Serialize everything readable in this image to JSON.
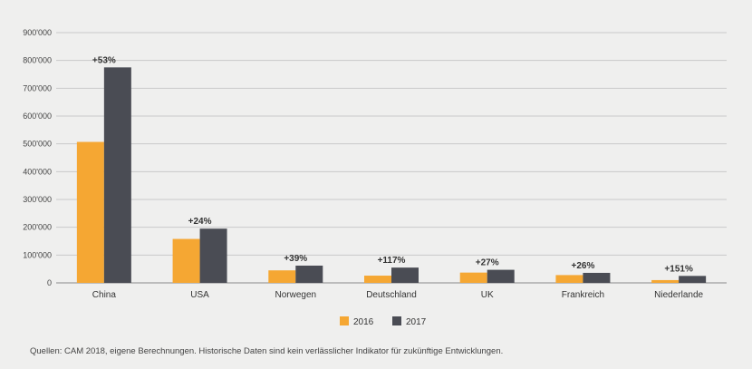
{
  "chart_data": {
    "type": "bar",
    "categories": [
      "China",
      "USA",
      "Norwegen",
      "Deutschland",
      "UK",
      "Frankreich",
      "Niederlande"
    ],
    "series": [
      {
        "name": "2016",
        "values": [
          507000,
          158000,
          45000,
          26000,
          37000,
          28000,
          10000
        ],
        "color": "#f5a733"
      },
      {
        "name": "2017",
        "values": [
          775000,
          195000,
          62000,
          55000,
          47000,
          36000,
          25000
        ],
        "color": "#4a4c54"
      }
    ],
    "annotations": [
      "+53%",
      "+24%",
      "+39%",
      "+117%",
      "+27%",
      "+26%",
      "+151%"
    ],
    "yticks": [
      0,
      100000,
      200000,
      300000,
      400000,
      500000,
      600000,
      700000,
      800000,
      900000
    ],
    "ytick_labels": [
      "0",
      "100'000",
      "200'000",
      "300'000",
      "400'000",
      "500'000",
      "600'000",
      "700'000",
      "800'000",
      "900'000"
    ],
    "ylim": [
      0,
      900000
    ],
    "grid": true,
    "legend_position": "bottom-center",
    "title": "",
    "xlabel": "",
    "ylabel": ""
  },
  "footnote": "Quellen: CAM 2018, eigene Berechnungen. Historische Daten sind kein verlässlicher Indikator für zukünftige Entwicklungen."
}
